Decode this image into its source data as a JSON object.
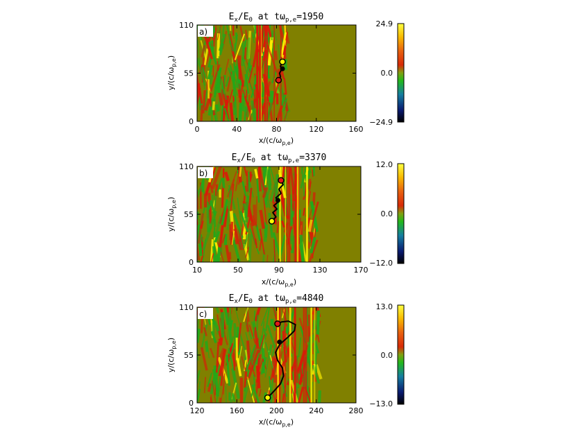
{
  "colors": {
    "background": "#808000",
    "green": "#22a81a",
    "red": "#d81a08",
    "yellow": "#fff000",
    "traj_start": "#ffff00",
    "traj_end": "#e01818",
    "traj_line": "#000000"
  },
  "chart_data": [
    {
      "type": "heatmap",
      "panel_label": "a)",
      "title_main": "E",
      "title_sub_x": "x",
      "title_mid": "/E",
      "title_sub_0": "0",
      "title_at": " at tω",
      "title_sub_pe": "p,e",
      "title_time": "=1950",
      "xlabel": "x/(c/ω",
      "xlabel_sub": "p,e",
      "xlabel_end": ")",
      "ylabel": "y/(c/ω",
      "ylabel_sub": "p,e",
      "ylabel_end": ")",
      "xlim": [
        0,
        160
      ],
      "ylim": [
        0,
        110
      ],
      "xticks": [
        "0",
        "40",
        "80",
        "120",
        "160"
      ],
      "xtick_values": [
        0,
        40,
        80,
        120,
        160
      ],
      "yticks": [
        "0",
        "55",
        "110"
      ],
      "ytick_values": [
        0,
        55,
        110
      ],
      "colorbar_ticks": [
        "24.9",
        "0.0",
        "−24.9"
      ],
      "colorbar_range": [
        -24.9,
        24.9
      ],
      "shock_front_x": 90,
      "turbulence_start_x": 0,
      "trajectory": {
        "x": [
          86,
          84,
          85,
          83,
          84,
          82
        ],
        "y": [
          68,
          63,
          59,
          55,
          51,
          47
        ],
        "start": [
          86,
          68
        ],
        "mid": [
          86,
          60
        ],
        "end": [
          82,
          47
        ]
      }
    },
    {
      "type": "heatmap",
      "panel_label": "b)",
      "title_main": "E",
      "title_sub_x": "x",
      "title_mid": "/E",
      "title_sub_0": "0",
      "title_at": " at tω",
      "title_sub_pe": "p,e",
      "title_time": "=3370",
      "xlabel": "x/(c/ω",
      "xlabel_sub": "p,e",
      "xlabel_end": ")",
      "ylabel": "y/(c/ω",
      "ylabel_sub": "p,e",
      "ylabel_end": ")",
      "xlim": [
        10,
        170
      ],
      "ylim": [
        0,
        110
      ],
      "xticks": [
        "10",
        "50",
        "90",
        "130",
        "170"
      ],
      "xtick_values": [
        10,
        50,
        90,
        130,
        170
      ],
      "yticks": [
        "0",
        "55",
        "110"
      ],
      "ytick_values": [
        0,
        55,
        110
      ],
      "colorbar_ticks": [
        "12.0",
        "0.0",
        "−12.0"
      ],
      "colorbar_range": [
        -12,
        12
      ],
      "shock_front_x": 125,
      "turbulence_start_x": 10,
      "trajectory": {
        "x": [
          83,
          87,
          84,
          88,
          85,
          90,
          87,
          92,
          90,
          94,
          92
        ],
        "y": [
          47,
          52,
          57,
          61,
          65,
          70,
          74,
          79,
          84,
          89,
          94
        ],
        "start": [
          83,
          47
        ],
        "mid": [
          89,
          71
        ],
        "end": [
          92,
          94
        ]
      }
    },
    {
      "type": "heatmap",
      "panel_label": "c)",
      "title_main": "E",
      "title_sub_x": "x",
      "title_mid": "/E",
      "title_sub_0": "0",
      "title_at": " at tω",
      "title_sub_pe": "p,e",
      "title_time": "=4840",
      "xlabel": "x/(c/ω",
      "xlabel_sub": "p,e",
      "xlabel_end": ")",
      "ylabel": "y/(c/ω",
      "ylabel_sub": "p,e",
      "ylabel_end": ")",
      "xlim": [
        120,
        280
      ],
      "ylim": [
        0,
        110
      ],
      "xticks": [
        "120",
        "160",
        "200",
        "240",
        "280"
      ],
      "xtick_values": [
        120,
        160,
        200,
        240,
        280
      ],
      "yticks": [
        "0",
        "55",
        "110"
      ],
      "ytick_values": [
        0,
        55,
        110
      ],
      "colorbar_ticks": [
        "13.0",
        "0.0",
        "−13.0"
      ],
      "colorbar_range": [
        -13,
        13
      ],
      "shock_front_x": 245,
      "turbulence_start_x": 120,
      "trajectory": {
        "x": [
          191,
          197,
          204,
          207,
          206,
          201,
          199,
          203,
          211,
          218,
          219,
          212,
          205,
          201
        ],
        "y": [
          6,
          13,
          22,
          31,
          40,
          49,
          58,
          67,
          75,
          83,
          90,
          94,
          93,
          91
        ],
        "start": [
          191,
          6
        ],
        "mid": [
          203,
          70
        ],
        "end": [
          201,
          91
        ]
      }
    }
  ]
}
